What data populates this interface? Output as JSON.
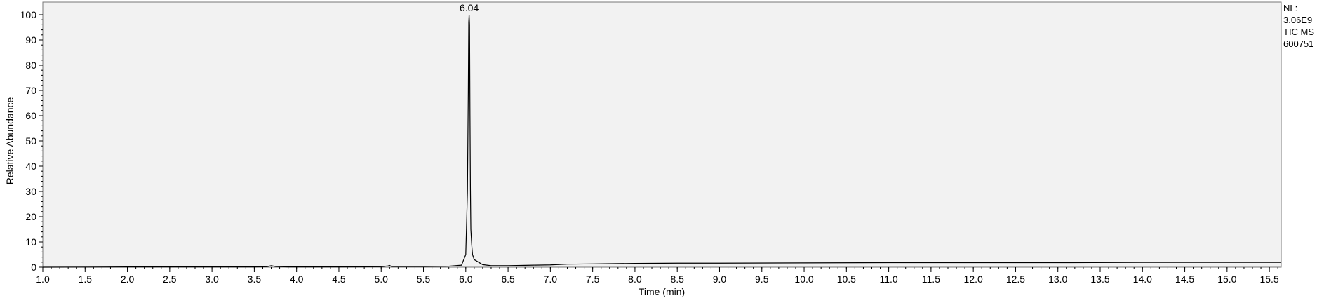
{
  "chart_data": {
    "type": "line",
    "title": "",
    "xlabel": "Time (min)",
    "ylabel": "Relative Abundance",
    "xlim": [
      1.0,
      15.64
    ],
    "ylim": [
      0,
      100
    ],
    "grid": false,
    "x_ticks": [
      1.0,
      1.5,
      2.0,
      2.5,
      3.0,
      3.5,
      4.0,
      4.5,
      5.0,
      5.5,
      6.0,
      6.5,
      7.0,
      7.5,
      8.0,
      8.5,
      9.0,
      9.5,
      10.0,
      10.5,
      11.0,
      11.5,
      12.0,
      12.5,
      13.0,
      13.5,
      14.0,
      14.5,
      15.0,
      15.5
    ],
    "x_tick_labels": [
      "1.0",
      "1.5",
      "2.0",
      "2.5",
      "3.0",
      "3.5",
      "4.0",
      "4.5",
      "5.0",
      "5.5",
      "6.0",
      "6.5",
      "7.0",
      "7.5",
      "8.0",
      "8.5",
      "9.0",
      "9.5",
      "10.0",
      "10.5",
      "11.0",
      "11.5",
      "12.0",
      "12.5",
      "13.0",
      "13.5",
      "14.0",
      "14.5",
      "15.0",
      "15.5"
    ],
    "y_ticks": [
      0,
      10,
      20,
      30,
      40,
      50,
      60,
      70,
      80,
      90,
      100
    ],
    "y_tick_labels": [
      "0",
      "10",
      "20",
      "30",
      "40",
      "50",
      "60",
      "70",
      "80",
      "90",
      "100"
    ],
    "peak_annotations": [
      {
        "x": 6.04,
        "y": 100,
        "label": "6.04"
      }
    ],
    "series": [
      {
        "x": [
          1.0,
          2.0,
          3.0,
          3.5,
          3.65,
          3.7,
          3.75,
          3.9,
          4.5,
          5.0,
          5.08,
          5.1,
          5.12,
          5.5,
          5.8,
          5.95,
          6.0,
          6.02,
          6.03,
          6.035,
          6.04,
          6.045,
          6.05,
          6.055,
          6.06,
          6.07,
          6.08,
          6.1,
          6.15,
          6.2,
          6.3,
          6.5,
          6.8,
          7.0,
          7.2,
          7.5,
          8.0,
          8.5,
          9.0,
          10.0,
          11.0,
          12.0,
          13.0,
          14.0,
          15.0,
          15.64
        ],
        "y": [
          0.0,
          0.1,
          0.1,
          0.1,
          0.2,
          0.6,
          0.3,
          0.1,
          0.1,
          0.2,
          0.5,
          0.7,
          0.3,
          0.3,
          0.4,
          0.8,
          5.0,
          30.0,
          70.0,
          97.0,
          100.0,
          96.0,
          60.0,
          31.0,
          15.0,
          9.0,
          5.0,
          3.0,
          2.0,
          1.0,
          0.6,
          0.6,
          0.8,
          0.9,
          1.2,
          1.3,
          1.5,
          1.6,
          1.6,
          1.7,
          1.8,
          1.8,
          1.8,
          1.9,
          1.9,
          1.9
        ]
      }
    ]
  },
  "info_box": {
    "nl_label": "NL:",
    "nl_value": "3.06E9",
    "trace": "TIC  MS",
    "file_id": "600751"
  }
}
